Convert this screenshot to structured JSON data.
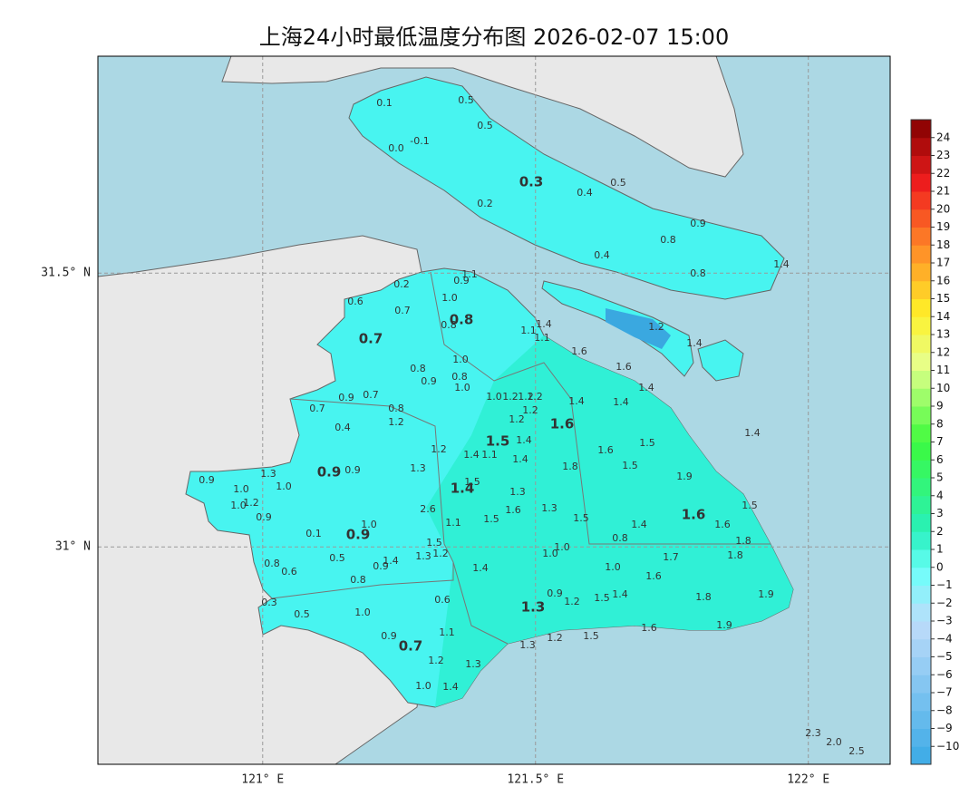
{
  "title": "上海24小时最低温度分布图 2026-02-07 15:00",
  "map": {
    "lon_lim": [
      120.698,
      122.15
    ],
    "lat_lim": [
      30.603,
      31.896
    ],
    "lon_ticks": [
      {
        "value": 121,
        "label": "121° E"
      },
      {
        "value": 121.5,
        "label": "121.5° E"
      },
      {
        "value": 122,
        "label": "122° E"
      }
    ],
    "lat_ticks": [
      {
        "value": 31,
        "label": "31° N"
      },
      {
        "value": 31.5,
        "label": "31.5° N"
      }
    ],
    "grid": true
  },
  "colorbar": {
    "lim": [
      -11,
      25
    ],
    "ticks": [
      {
        "value": -10,
        "label": "−10"
      },
      {
        "value": -9,
        "label": "−9"
      },
      {
        "value": -8,
        "label": "−8"
      },
      {
        "value": -7,
        "label": "−7"
      },
      {
        "value": -6,
        "label": "−6"
      },
      {
        "value": -5,
        "label": "−5"
      },
      {
        "value": -4,
        "label": "−4"
      },
      {
        "value": -3,
        "label": "−3"
      },
      {
        "value": -2,
        "label": "−2"
      },
      {
        "value": -1,
        "label": "−1"
      },
      0,
      1,
      2,
      3,
      4,
      5,
      6,
      7,
      8,
      9,
      10,
      11,
      12,
      13,
      14,
      15,
      16,
      17,
      18,
      19,
      20,
      21,
      22,
      23,
      24
    ]
  },
  "district_values": [
    "0.3",
    "0.8",
    "0.7",
    "1.6",
    "1.5",
    "0.9",
    "1.4",
    "1.6",
    "0.9",
    "1.3",
    "0.7"
  ],
  "stations": [
    "0.1",
    "0.5",
    "0.5",
    "-0.1",
    "0.0",
    "0.4",
    "0.5",
    "0.2",
    "0.9",
    "0.8",
    "0.4",
    "0.8",
    "1.4",
    "1.1",
    "0.9",
    "0.2",
    "0.6",
    "1.0",
    "0.7",
    "0.8",
    "1.4",
    "1.1",
    "1.1",
    "1.2",
    "1.4",
    "1.6",
    "1.0",
    "0.8",
    "1.6",
    "0.9",
    "0.8",
    "1.4",
    "1.0",
    "1.0",
    "1.2",
    "1.2",
    "1.2",
    "1.4",
    "1.4",
    "0.9",
    "0.7",
    "0.7",
    "0.8",
    "1.2",
    "1.2",
    "1.2",
    "0.4",
    "1.4",
    "1.4",
    "1.2",
    "1.4",
    "1.1",
    "1.6",
    "1.5",
    "1.4",
    "1.3",
    "0.9",
    "1.3",
    "1.8",
    "1.5",
    "1.9",
    "0.9",
    "1.0",
    "1.0",
    "1.5",
    "1.3",
    "1.2",
    "1.0",
    "2.6",
    "1.6",
    "1.3",
    "1.5",
    "0.9",
    "1.5",
    "1.1",
    "1.5",
    "1.6",
    "1.0",
    "1.4",
    "0.1",
    "0.8",
    "1.8",
    "1.5",
    "1.0",
    "1.0",
    "0.5",
    "1.4",
    "0.9",
    "1.3",
    "1.2",
    "1.7",
    "1.8",
    "0.8",
    "0.6",
    "1.4",
    "1.0",
    "1.6",
    "0.8",
    "0.9",
    "1.2",
    "1.5",
    "1.4",
    "0.6",
    "0.3",
    "1.8",
    "1.9",
    "1.0",
    "0.5",
    "1.1",
    "1.6",
    "1.9",
    "0.9",
    "1.3",
    "1.2",
    "1.5",
    "1.2",
    "1.3",
    "1.0",
    "1.4",
    "2.3",
    "2.0",
    "2.5"
  ]
}
